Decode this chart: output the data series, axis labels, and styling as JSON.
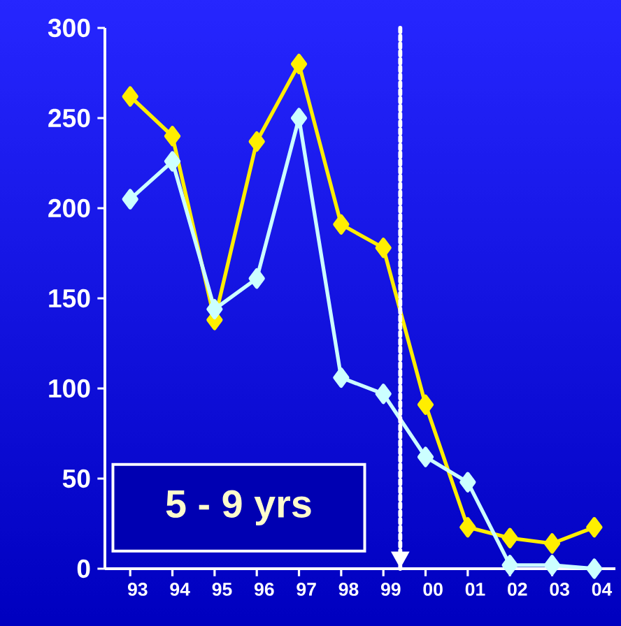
{
  "chart_data": {
    "type": "line",
    "x": [
      1993,
      1994,
      1995,
      1996,
      1997,
      1998,
      1999,
      2000,
      2001,
      2002,
      2003,
      2004
    ],
    "series": [
      {
        "color": "#ffee00",
        "values": [
          262,
          240,
          138,
          237,
          280,
          191,
          178,
          91,
          23,
          17,
          14,
          23
        ]
      },
      {
        "color": "#ccffff",
        "values": [
          205,
          226,
          144,
          161,
          250,
          106,
          97,
          62,
          48,
          2,
          2,
          0
        ]
      }
    ],
    "xlim": [
      1992.4,
      2004.5
    ],
    "xticks": [
      {
        "value": 1993,
        "label": "93"
      },
      {
        "value": 1994,
        "label": "94"
      },
      {
        "value": 1995,
        "label": "95"
      },
      {
        "value": 1996,
        "label": "96"
      },
      {
        "value": 1997,
        "label": "97"
      },
      {
        "value": 1998,
        "label": "98"
      },
      {
        "value": 1999,
        "label": "99"
      },
      {
        "value": 2000,
        "label": "00"
      },
      {
        "value": 2001,
        "label": "01"
      },
      {
        "value": 2002,
        "label": "02"
      },
      {
        "value": 2003,
        "label": "03"
      },
      {
        "value": 2004,
        "label": "04"
      }
    ],
    "ylim": [
      0,
      300
    ],
    "yticks": [
      0,
      50,
      100,
      150,
      200,
      250,
      300
    ],
    "ref_lines": [
      {
        "axis": "x",
        "value": 1999.4,
        "color": "#ffffff",
        "line_style": "dotted"
      }
    ],
    "annotations": [
      "5 - 9 yrs"
    ],
    "marker": "diamond"
  }
}
